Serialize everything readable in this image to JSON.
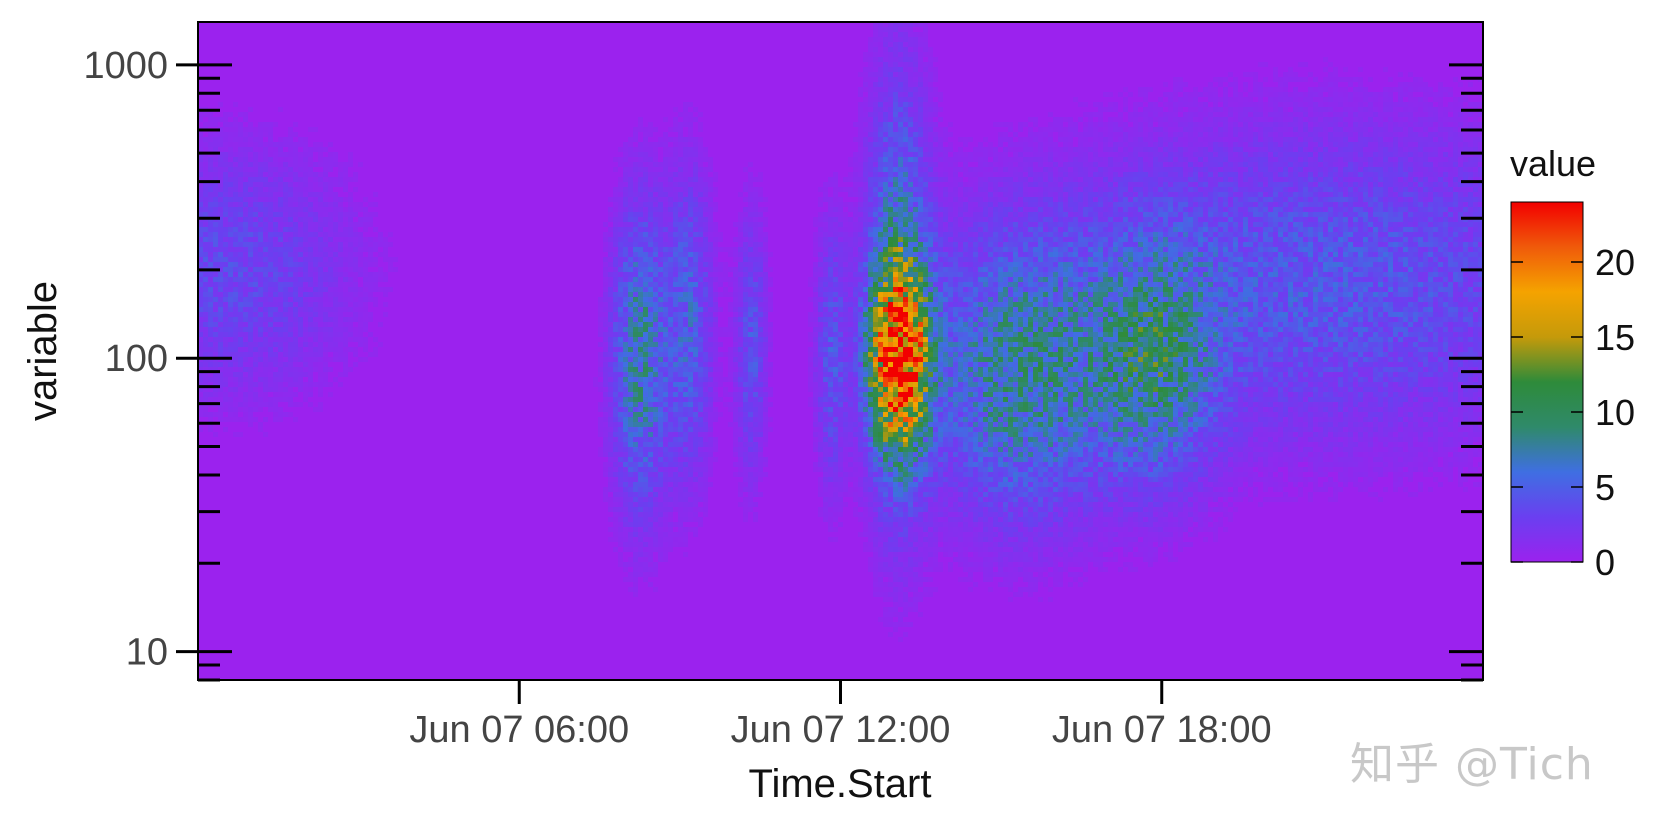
{
  "chart_data": {
    "type": "heatmap",
    "title": "",
    "xlabel": "Time.Start",
    "ylabel": "variable",
    "x_range": [
      "2015-06-07 00:00",
      "2015-06-08 00:00"
    ],
    "x_ticks": [
      {
        "value": "2015-06-07 06:00",
        "label": "Jun 07 06:00"
      },
      {
        "value": "2015-06-07 12:00",
        "label": "Jun 07 12:00"
      },
      {
        "value": "2015-06-07 18:00",
        "label": "Jun 07 18:00"
      }
    ],
    "y_scale": "log",
    "y_range": [
      8,
      1400
    ],
    "y_ticks": [
      {
        "value": 10,
        "label": "10"
      },
      {
        "value": 100,
        "label": "100"
      },
      {
        "value": 1000,
        "label": "1000"
      }
    ],
    "colorbar": {
      "title": "value",
      "range": [
        0,
        24
      ],
      "ticks": [
        {
          "value": 0,
          "label": "0"
        },
        {
          "value": 5,
          "label": "5"
        },
        {
          "value": 10,
          "label": "10"
        },
        {
          "value": 15,
          "label": "15"
        },
        {
          "value": 20,
          "label": "20"
        }
      ],
      "colors": [
        "#9b22ee",
        "#6a3ff0",
        "#3f6fe2",
        "#2f8a6a",
        "#2e8b3a",
        "#c59a0a",
        "#f5a300",
        "#f05a0a",
        "#f20000"
      ]
    },
    "background_value": 0,
    "blobs": [
      {
        "t_center": "2015-06-07 00:30",
        "t_halfwidth_h": 1.6,
        "y_center": 200,
        "y_spread_decades": 0.28,
        "peak": 3.5
      },
      {
        "t_center": "2015-06-07 08:15",
        "t_halfwidth_h": 0.35,
        "y_center": 100,
        "y_spread_decades": 0.35,
        "peak": 7.5
      },
      {
        "t_center": "2015-06-07 09:10",
        "t_halfwidth_h": 0.3,
        "y_center": 130,
        "y_spread_decades": 0.35,
        "peak": 5
      },
      {
        "t_center": "2015-06-07 10:20",
        "t_halfwidth_h": 0.2,
        "y_center": 110,
        "y_spread_decades": 0.3,
        "peak": 4
      },
      {
        "t_center": "2015-06-07 11:50",
        "t_halfwidth_h": 0.2,
        "y_center": 100,
        "y_spread_decades": 0.3,
        "peak": 4
      },
      {
        "t_center": "2015-06-07 13:05",
        "t_halfwidth_h": 0.38,
        "y_center": 100,
        "y_spread_decades": 0.2,
        "peak": 19
      },
      {
        "t_center": "2015-06-07 13:05",
        "t_halfwidth_h": 0.4,
        "y_center": 160,
        "y_spread_decades": 0.5,
        "peak": 7
      },
      {
        "t_center": "2015-06-07 15:20",
        "t_halfwidth_h": 1.1,
        "y_center": 85,
        "y_spread_decades": 0.32,
        "peak": 7.5
      },
      {
        "t_center": "2015-06-07 17:50",
        "t_halfwidth_h": 0.8,
        "y_center": 95,
        "y_spread_decades": 0.28,
        "peak": 7
      },
      {
        "t_center": "2015-06-07 21:00",
        "t_halfwidth_h": 3.5,
        "y_center": 180,
        "y_spread_decades": 0.35,
        "peak": 4.5
      }
    ]
  },
  "watermark": "知乎 @Tich"
}
